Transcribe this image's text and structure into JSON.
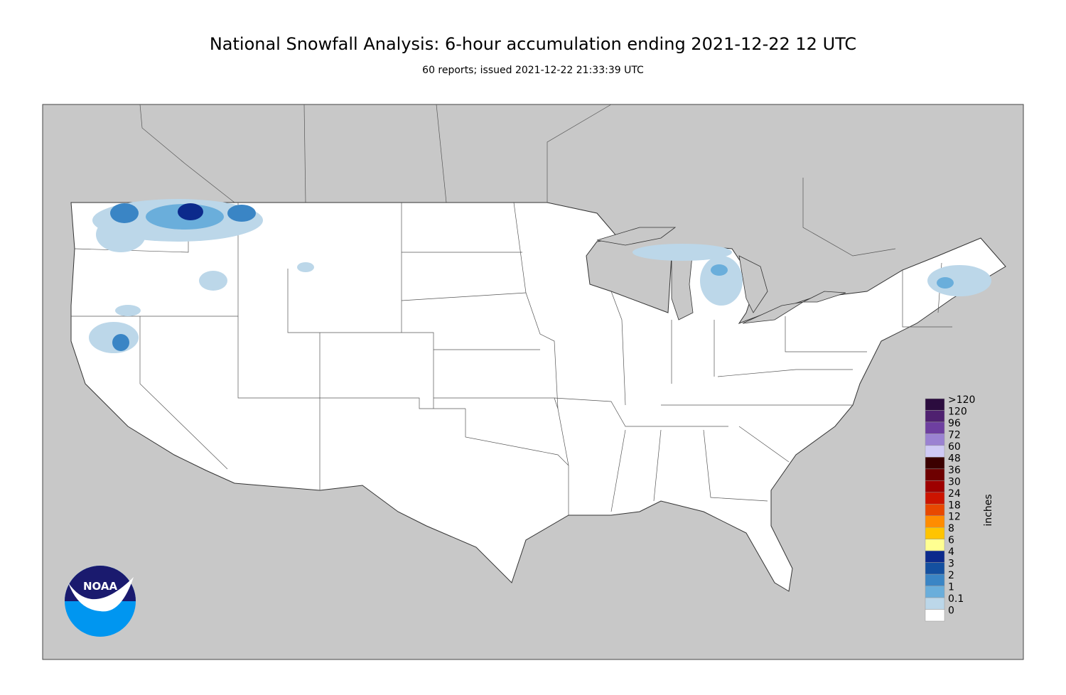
{
  "header": {
    "title": "National Snowfall Analysis: 6-hour accumulation ending 2021-12-22 12 UTC",
    "subtitle": "60 reports; issued 2021-12-22 21:33:39 UTC"
  },
  "legend": {
    "unit": "inches",
    "bins": [
      {
        "label": ">120",
        "color": "#2b0c3e"
      },
      {
        "label": "120",
        "color": "#4f2170"
      },
      {
        "label": "96",
        "color": "#6e3fa0"
      },
      {
        "label": "72",
        "color": "#9b82d2"
      },
      {
        "label": "60",
        "color": "#cfcaf5"
      },
      {
        "label": "48",
        "color": "#3b0000"
      },
      {
        "label": "36",
        "color": "#6e0000"
      },
      {
        "label": "30",
        "color": "#9e0000"
      },
      {
        "label": "24",
        "color": "#cc1400"
      },
      {
        "label": "18",
        "color": "#e84800"
      },
      {
        "label": "12",
        "color": "#ff8c00"
      },
      {
        "label": "8",
        "color": "#ffc400"
      },
      {
        "label": "6",
        "color": "#ffff91"
      },
      {
        "label": "4",
        "color": "#0c2a8c"
      },
      {
        "label": "3",
        "color": "#1450a0"
      },
      {
        "label": "2",
        "color": "#3a85c5"
      },
      {
        "label": "1",
        "color": "#6aaedb"
      },
      {
        "label": "0.1",
        "color": "#bcd7e9"
      },
      {
        "label": "0",
        "color": "#ffffff"
      }
    ]
  },
  "logo": {
    "text": "NOAA"
  }
}
